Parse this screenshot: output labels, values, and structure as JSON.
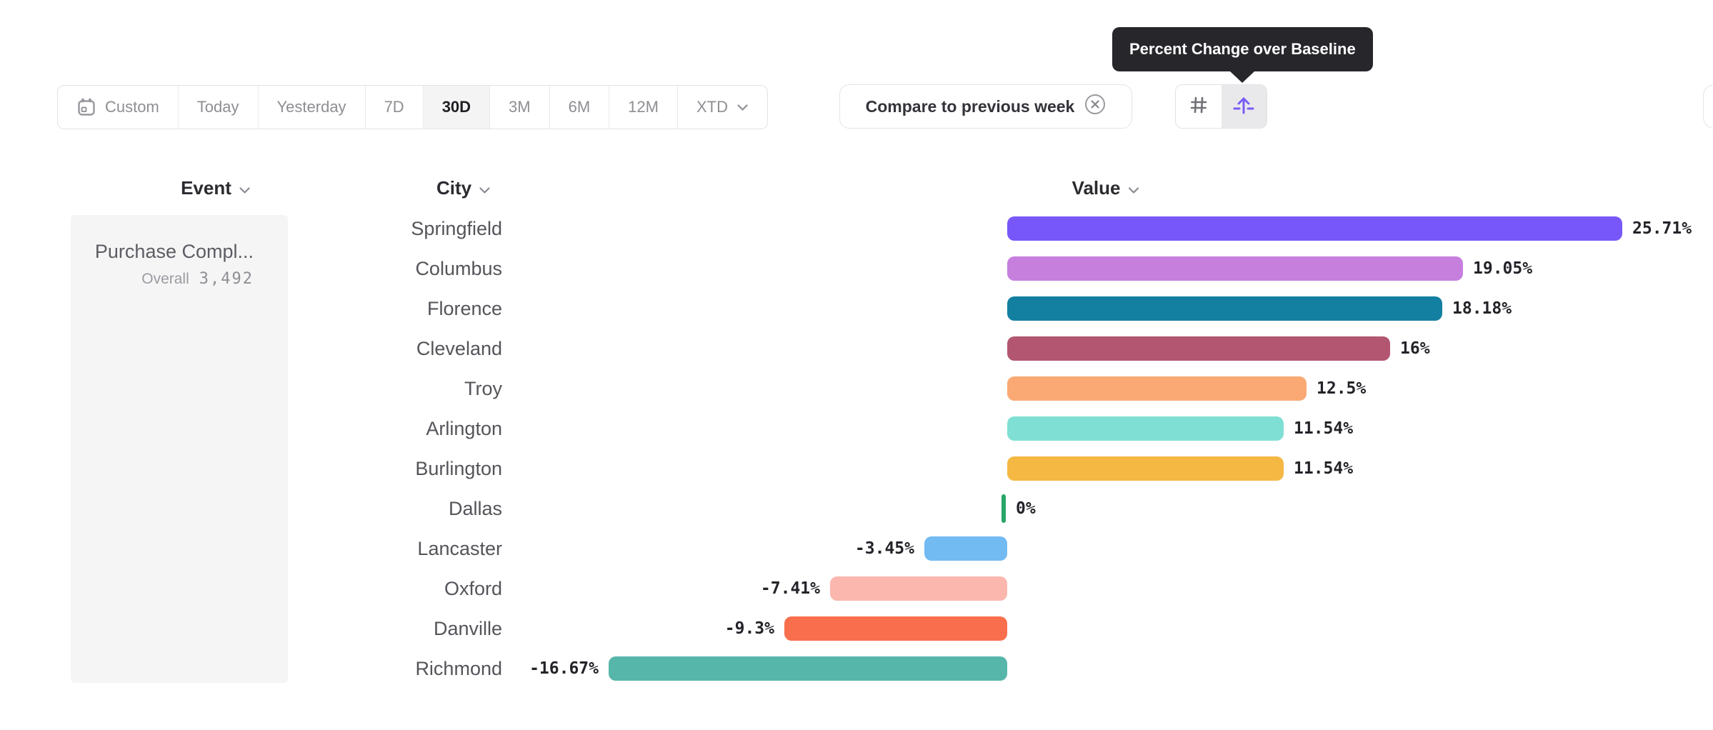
{
  "toolbar": {
    "date_ranges": [
      {
        "label": "Custom",
        "icon": "calendar-icon",
        "selected": false
      },
      {
        "label": "Today",
        "selected": false
      },
      {
        "label": "Yesterday",
        "selected": false
      },
      {
        "label": "7D",
        "selected": false
      },
      {
        "label": "30D",
        "selected": true
      },
      {
        "label": "3M",
        "selected": false
      },
      {
        "label": "6M",
        "selected": false
      },
      {
        "label": "12M",
        "selected": false
      },
      {
        "label": "XTD",
        "icon": "chevron-down-icon",
        "selected": false
      }
    ],
    "compare": {
      "label": "Compare to previous week",
      "remove_icon": "circle-x-icon"
    },
    "view_toggles": [
      {
        "name": "grid-view",
        "icon": "hash-icon",
        "selected": false
      },
      {
        "name": "percent-change-over-baseline",
        "icon": "arrow-up-baseline-icon",
        "selected": true
      }
    ]
  },
  "tooltip": {
    "text": "Percent Change over Baseline"
  },
  "columns": {
    "event": "Event",
    "city": "City",
    "value": "Value"
  },
  "event_card": {
    "name": "Purchase Compl...",
    "overall_label": "Overall",
    "overall_value": "3,492"
  },
  "chart_data": {
    "type": "bar",
    "orientation": "horizontal",
    "title": "Percent Change over Baseline",
    "event": "Purchase Compl...",
    "value_unit": "%",
    "xlim": [
      -16.67,
      25.71
    ],
    "categories": [
      "Springfield",
      "Columbus",
      "Florence",
      "Cleveland",
      "Troy",
      "Arlington",
      "Burlington",
      "Dallas",
      "Lancaster",
      "Oxford",
      "Danville",
      "Richmond"
    ],
    "values": [
      25.71,
      19.05,
      18.18,
      16,
      12.5,
      11.54,
      11.54,
      0,
      -3.45,
      -7.41,
      -9.3,
      -16.67
    ],
    "labels": [
      "25.71%",
      "19.05%",
      "18.18%",
      "16%",
      "12.5%",
      "11.54%",
      "11.54%",
      "0%",
      "-3.45%",
      "-7.41%",
      "-9.3%",
      "-16.67%"
    ],
    "colors": [
      "#7857FA",
      "#C77FDE",
      "#1380A1",
      "#B25672",
      "#FAA974",
      "#7FDFD4",
      "#F4B843",
      "#28A569",
      "#72BAF2",
      "#FBB6AE",
      "#F96F4D",
      "#56B6AA"
    ]
  },
  "theme": {
    "accent_purple": "#7857FA",
    "zero_tick_green": "#28A569",
    "tooltip_bg": "#26262B",
    "selected_segment_bg": "#F4F4F5",
    "border_gray": "#E3E3E6"
  }
}
